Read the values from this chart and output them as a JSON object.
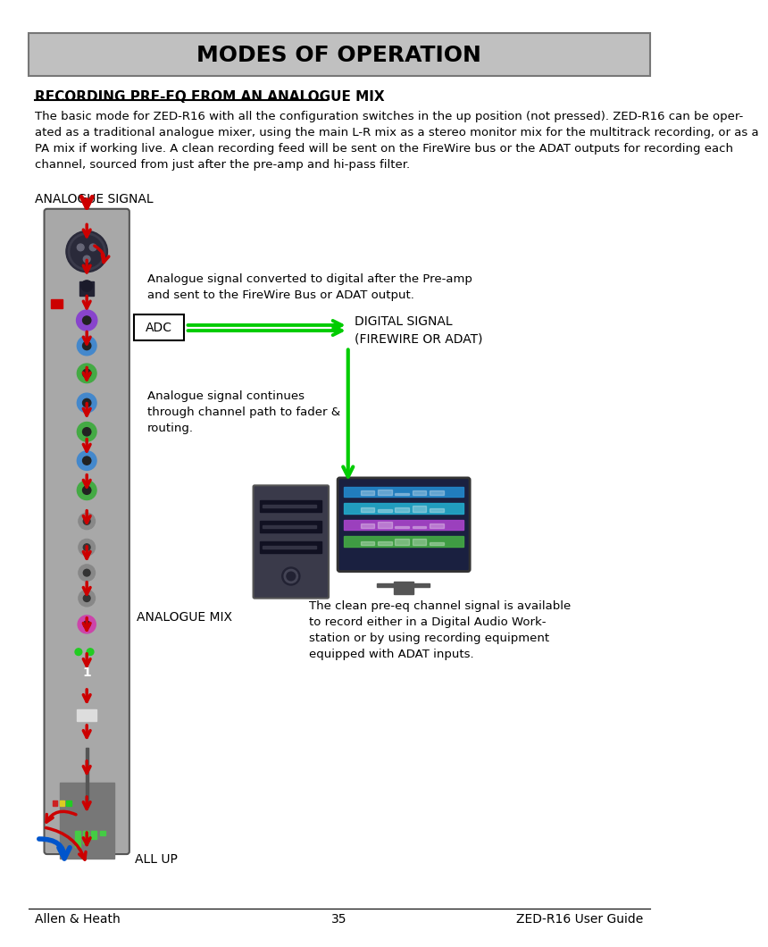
{
  "title": "MODES OF OPERATION",
  "title_bg": "#c0c0c0",
  "section_title": "RECORDING PRE-EQ FROM AN ANALOGUE MIX",
  "body_text": "The basic mode for ZED-R16 with all the configuration switches in the up position (not pressed). ZED-R16 can be oper-\nated as a traditional analogue mixer, using the main L-R mix as a stereo monitor mix for the multitrack recording, or as a\nPA mix if working live. A clean recording feed will be sent on the FireWire bus or the ADAT outputs for recording each\nchannel, sourced from just after the pre-amp and hi-pass filter.",
  "analogue_signal_label": "ANALOGUE SIGNAL",
  "annotation1": "Analogue signal converted to digital after the Pre-amp\nand sent to the FireWire Bus or ADAT output.",
  "adc_label": "ADC",
  "digital_signal_label": "DIGITAL SIGNAL\n(FIREWIRE OR ADAT)",
  "annotation2": "Analogue signal continues\nthrough channel path to fader &\nrouting.",
  "analogue_mix_label": "ANALOGUE MIX",
  "annotation3": "The clean pre-eq channel signal is available\nto record either in a Digital Audio Work-\nstation or by using recording equipment\nequipped with ADAT inputs.",
  "all_up_label": "ALL UP",
  "footer_left": "Allen & Heath",
  "footer_center": "35",
  "footer_right": "ZED-R16 User Guide",
  "bg_color": "#ffffff",
  "mixer_color": "#a8a8a8",
  "arrow_red": "#cc0000",
  "arrow_green": "#00cc00",
  "arrow_blue": "#0055cc",
  "title_fontsize": 18,
  "body_fontsize": 9.5,
  "section_fontsize": 11,
  "label_fontsize": 10,
  "annot_fontsize": 9.5
}
